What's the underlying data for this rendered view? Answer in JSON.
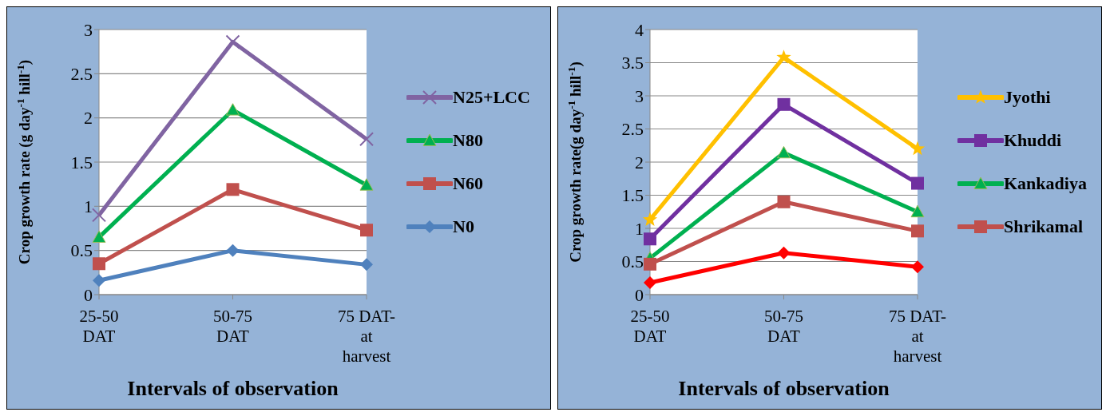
{
  "chart_data": [
    {
      "type": "line",
      "xlabel": "Intervals of observation",
      "ylabel": "Crop growth rate (g day$^{-1}$ hill$^{-1}$)",
      "categories": [
        "25-50 DAT",
        "50-75 DAT",
        "75 DAT-at harvest"
      ],
      "ylim": [
        0,
        3
      ],
      "yticks": [
        0,
        0.5,
        1,
        1.5,
        2,
        2.5,
        3
      ],
      "grid": "y",
      "legend": "right",
      "series": [
        {
          "name": "N25+LCC",
          "color": "#8064a2",
          "marker": "cross",
          "values": [
            0.9,
            2.86,
            1.76
          ]
        },
        {
          "name": "N80",
          "color": "#00b050",
          "marker": "triangle",
          "values": [
            0.65,
            2.09,
            1.24
          ]
        },
        {
          "name": "N60",
          "color": "#c0504d",
          "marker": "square",
          "values": [
            0.35,
            1.19,
            0.73
          ]
        },
        {
          "name": "N0",
          "color": "#4f81bd",
          "marker": "diamond",
          "values": [
            0.16,
            0.5,
            0.34
          ]
        }
      ]
    },
    {
      "type": "line",
      "xlabel": "Intervals of observation",
      "ylabel": "Crop growth rate(g day$^{-1}$ hill$^{-1}$)",
      "categories": [
        "25-50 DAT",
        "50-75 DAT",
        "75 DAT-at harvest"
      ],
      "ylim": [
        0,
        4
      ],
      "yticks": [
        0,
        0.5,
        1,
        1.5,
        2,
        2.5,
        3,
        3.5,
        4
      ],
      "grid": "y",
      "legend": "right",
      "series": [
        {
          "name": "Jyothi",
          "color": "#ffc000",
          "marker": "star",
          "values": [
            1.13,
            3.58,
            2.2
          ]
        },
        {
          "name": "Khuddi",
          "color": "#7030a0",
          "marker": "square",
          "values": [
            0.84,
            2.87,
            1.68
          ]
        },
        {
          "name": "Kankadiya",
          "color": "#00b050",
          "marker": "triangle",
          "values": [
            0.55,
            2.14,
            1.25
          ]
        },
        {
          "name": "Shrikamal",
          "color": "#c0504d",
          "marker": "square",
          "values": [
            0.46,
            1.4,
            0.96
          ]
        },
        {
          "color": "#ff0000",
          "marker": "diamond",
          "values": [
            0.18,
            0.63,
            0.42
          ]
        }
      ]
    }
  ]
}
